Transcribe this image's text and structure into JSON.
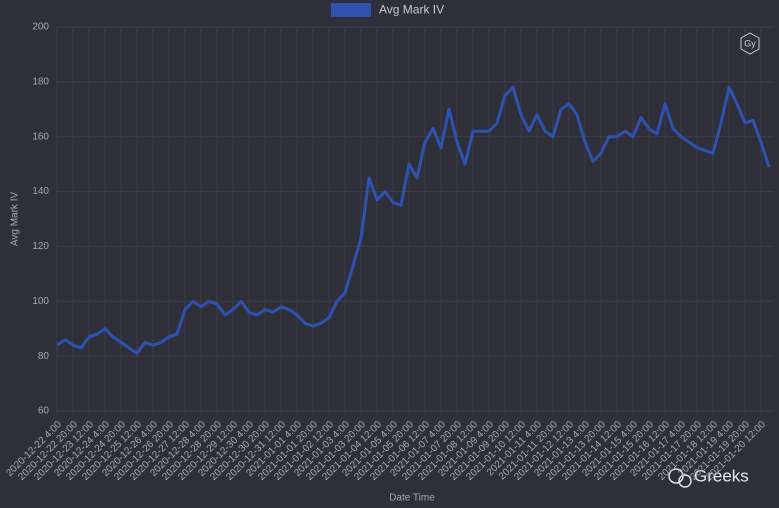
{
  "chart_data": {
    "type": "line",
    "legend_label": "Avg Mark IV",
    "y_label": "Avg Mark IV",
    "x_label": "Date Time",
    "categories": [
      "2020-12-22 4:00",
      null,
      "2020-12-22 20:00",
      null,
      "2020-12-23 12:00",
      null,
      "2020-12-24 4:00",
      null,
      "2020-12-24 20:00",
      null,
      "2020-12-25 12:00",
      null,
      "2020-12-26 4:00",
      null,
      "2020-12-26 20:00",
      null,
      "2020-12-27 12:00",
      null,
      "2020-12-28 4:00",
      null,
      "2020-12-28 20:00",
      null,
      "2020-12-29 12:00",
      null,
      "2020-12-30 4:00",
      null,
      "2020-12-30 20:00",
      null,
      "2020-12-31 12:00",
      null,
      "2021-01-01 4:00",
      null,
      "2021-01-01 20:00",
      null,
      "2021-01-02 12:00",
      null,
      "2021-01-03 4:00",
      null,
      "2021-01-03 20:00",
      null,
      "2021-01-04 12:00",
      null,
      "2021-01-05 4:00",
      null,
      "2021-01-05 20:00",
      null,
      "2021-01-06 12:00",
      null,
      "2021-01-07 4:00",
      null,
      "2021-01-07 20:00",
      null,
      "2021-01-08 12:00",
      null,
      "2021-01-09 4:00",
      null,
      "2021-01-09 20:00",
      null,
      "2021-01-10 12:00",
      null,
      "2021-01-11 4:00",
      null,
      "2021-01-11 20:00",
      null,
      "2021-01-12 12:00",
      null,
      "2021-01-13 4:00",
      null,
      "2021-01-13 20:00",
      null,
      "2021-01-14 12:00",
      null,
      "2021-01-15 4:00",
      null,
      "2021-01-15 20:00",
      null,
      "2021-01-16 12:00",
      null,
      "2021-01-17 4:00",
      null,
      "2021-01-17 20:00",
      null,
      "2021-01-18 12:00",
      null,
      "2021-01-19 4:00",
      null,
      "2021-01-19 20:00",
      null,
      "2021-01-20 12:00",
      null
    ],
    "values": [
      84,
      86,
      84,
      83,
      87,
      88,
      90,
      87,
      85,
      83,
      81,
      85,
      84,
      85,
      87,
      88,
      97,
      100,
      98,
      100,
      99,
      95,
      97,
      100,
      96,
      95,
      97,
      96,
      98,
      97,
      95,
      92,
      91,
      92,
      94,
      100,
      103,
      113,
      123,
      145,
      137,
      140,
      136,
      135,
      150,
      145,
      158,
      163,
      156,
      170,
      158,
      150,
      162,
      162,
      162,
      165,
      175,
      178,
      168,
      162,
      168,
      162,
      160,
      170,
      172,
      168,
      158,
      151,
      154,
      160,
      160,
      162,
      160,
      167,
      163,
      161,
      172,
      163,
      160,
      158,
      156,
      155,
      154,
      165,
      178,
      172,
      165,
      166,
      158,
      149
    ],
    "color": "#2d52b0",
    "ylim": [
      60,
      200
    ],
    "yticks": [
      60,
      80,
      100,
      120,
      140,
      160,
      180,
      200
    ],
    "grid": true,
    "legend_position": "top"
  },
  "logo": "Gy",
  "watermark": "Greeks"
}
